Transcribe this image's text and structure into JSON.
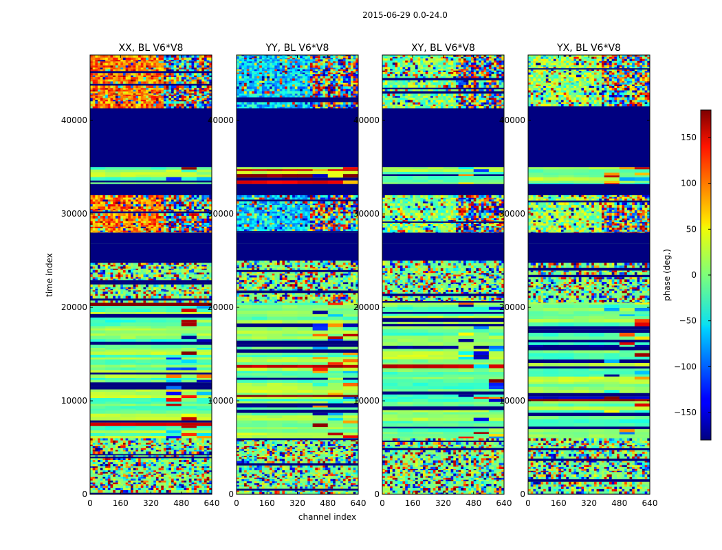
{
  "figure_title": "2015-06-29 0.0-24.0",
  "chart_data": {
    "type": "heatmap",
    "title": "2015-06-29 0.0-24.0",
    "xlabel": "channel index",
    "ylabel": "time index",
    "xlim": [
      0,
      640
    ],
    "ylim": [
      0,
      47000
    ],
    "x_ticks": [
      0,
      160,
      320,
      480,
      640
    ],
    "x_tick_labels": [
      "0",
      "160",
      "320",
      "480",
      "640"
    ],
    "y_ticks": [
      0,
      10000,
      20000,
      30000,
      40000
    ],
    "y_tick_labels": [
      "0",
      "10000",
      "20000",
      "30000",
      "40000"
    ],
    "colorbar": {
      "label": "phase (deg.)",
      "vmin": -180,
      "vmax": 180,
      "colormap": "jet",
      "ticks": [
        -150,
        -100,
        -50,
        0,
        50,
        100,
        150
      ],
      "tick_labels": [
        "−150",
        "−100",
        "−50",
        "0",
        "50",
        "100",
        "150"
      ]
    },
    "panels": [
      {
        "title": "XX, BL V6*V8",
        "bias": 95
      },
      {
        "title": "YY, BL V6*V8",
        "bias": -60
      },
      {
        "title": "XY, BL V6*V8",
        "bias": 0
      },
      {
        "title": "YX, BL V6*V8",
        "bias": 10
      }
    ],
    "segments": [
      {
        "from": 0,
        "to": 6000,
        "kind": "noise"
      },
      {
        "from": 6000,
        "to": 20500,
        "kind": "smooth"
      },
      {
        "from": 20500,
        "to": 25000,
        "kind": "fringe"
      },
      {
        "from": 25000,
        "to": 26800,
        "kind": "flag"
      },
      {
        "from": 26800,
        "to": 28000,
        "kind": "flag"
      },
      {
        "from": 28000,
        "to": 32000,
        "kind": "band"
      },
      {
        "from": 32000,
        "to": 33200,
        "kind": "flag"
      },
      {
        "from": 33200,
        "to": 35000,
        "kind": "smooth"
      },
      {
        "from": 35000,
        "to": 41300,
        "kind": "flag"
      },
      {
        "from": 41300,
        "to": 47000,
        "kind": "band"
      }
    ]
  }
}
